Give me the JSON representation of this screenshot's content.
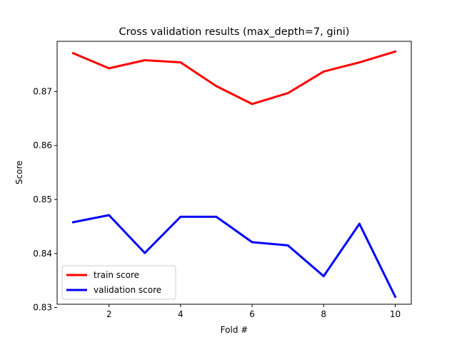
{
  "chart_data": {
    "type": "line",
    "title": "Cross validation results (max_depth=7, gini)",
    "xlabel": "Fold #",
    "ylabel": "Score",
    "x": [
      1,
      2,
      3,
      4,
      5,
      6,
      7,
      8,
      9,
      10
    ],
    "xlim": [
      0.55,
      10.45
    ],
    "ylim": [
      0.8306,
      0.8793
    ],
    "xticks": [
      2,
      4,
      6,
      8,
      10
    ],
    "yticks": [
      0.83,
      0.84,
      0.85,
      0.86,
      0.87
    ],
    "ytick_labels": [
      "0.83",
      "0.84",
      "0.85",
      "0.86",
      "0.87"
    ],
    "xtick_labels": [
      "2",
      "4",
      "6",
      "8",
      "10"
    ],
    "grid": false,
    "legend_position": "lower-left",
    "series": [
      {
        "name": "train score",
        "color": "#ff0000",
        "values": [
          0.8771,
          0.8743,
          0.8758,
          0.8754,
          0.871,
          0.8677,
          0.8697,
          0.8737,
          0.8754,
          0.8774
        ]
      },
      {
        "name": "validation score",
        "color": "#0000ff",
        "values": [
          0.8458,
          0.8471,
          0.8401,
          0.8468,
          0.8468,
          0.8421,
          0.8415,
          0.8358,
          0.8455,
          0.832
        ]
      }
    ]
  }
}
